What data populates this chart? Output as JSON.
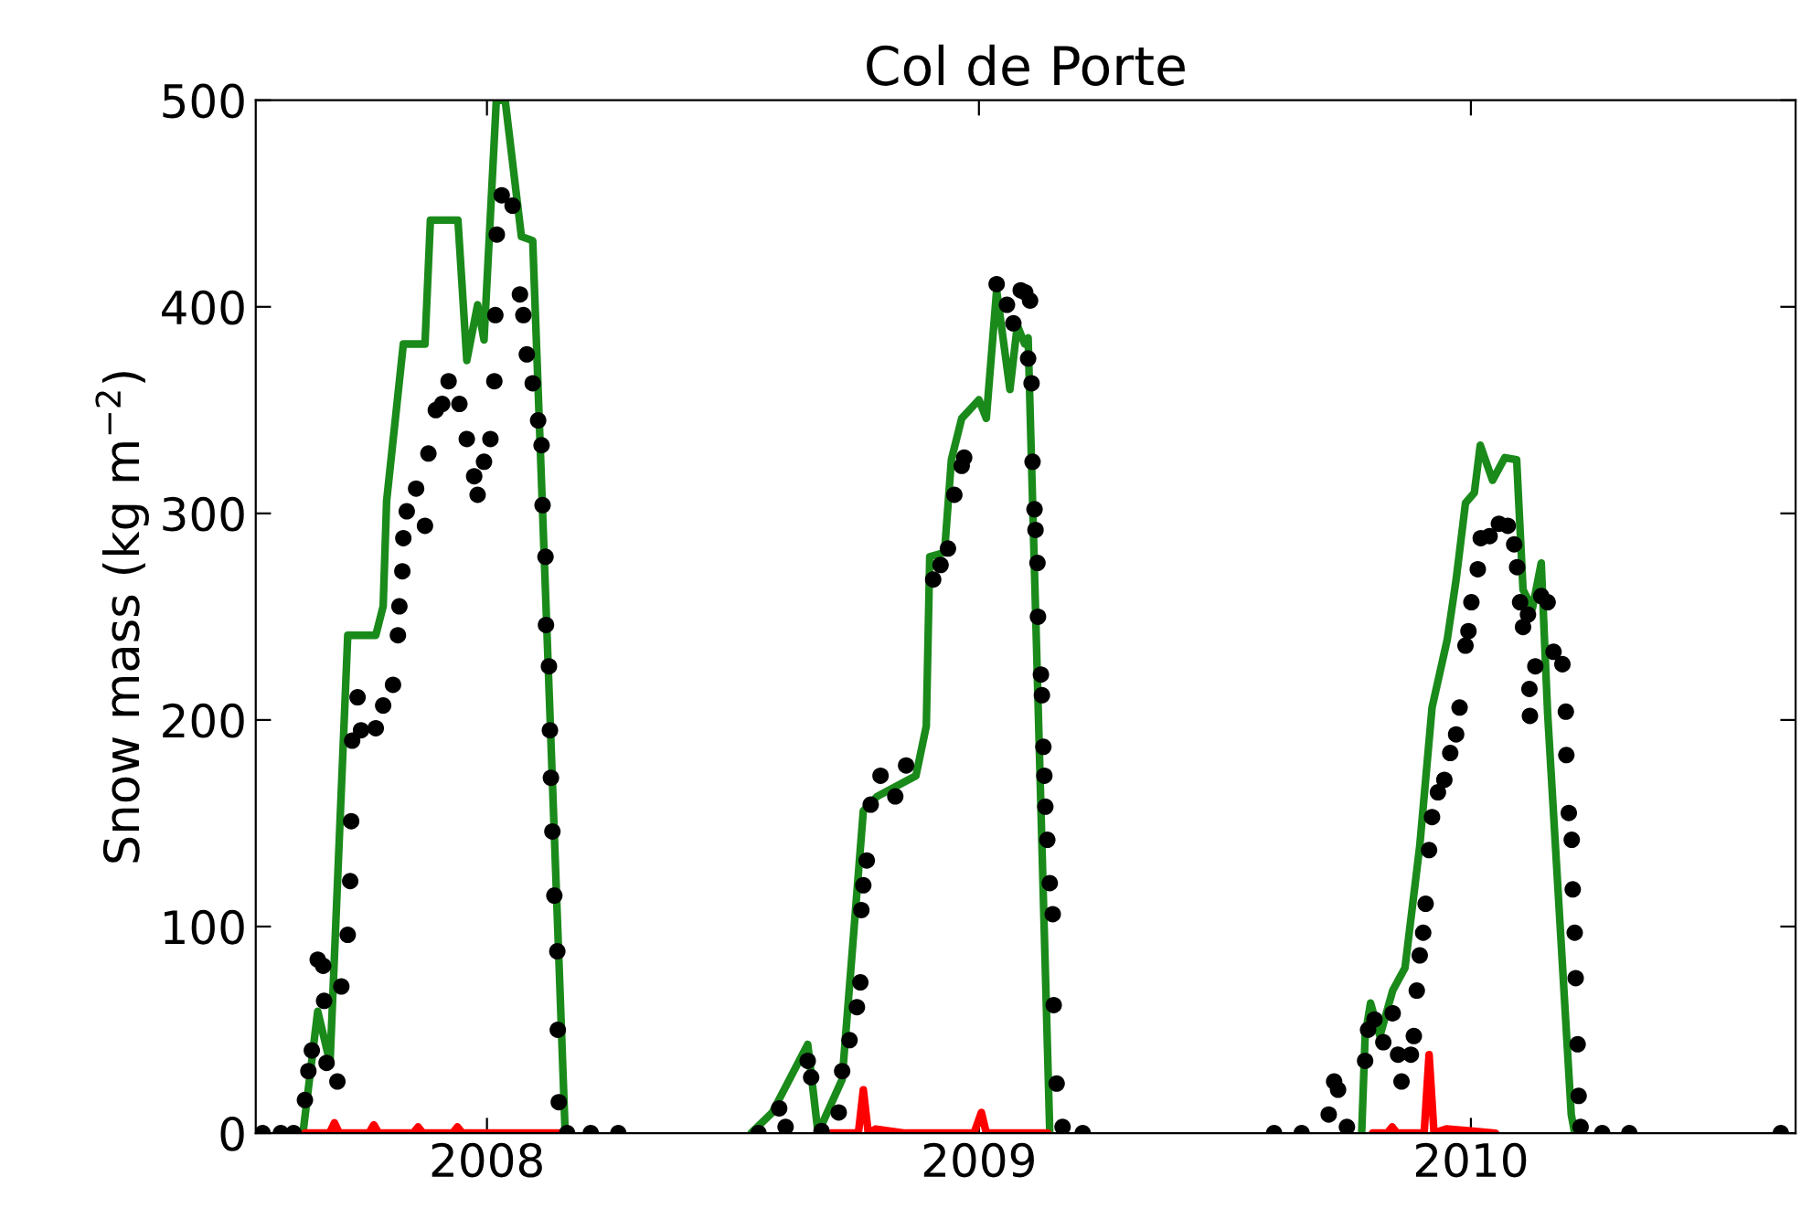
{
  "chart_data": {
    "type": "line",
    "title": "Col de Porte",
    "ylabel": "Snow mass (kg m$^{−2}$)",
    "xlim": [
      2007.53,
      2010.66
    ],
    "xticks": [
      2008,
      2009,
      2010
    ],
    "ylim": [
      0,
      500
    ],
    "yticks": [
      0,
      100,
      200,
      300,
      400,
      500
    ],
    "grid": false,
    "legend": false,
    "series": [
      {
        "color": "#1a8a1a",
        "x": [
          2007.626,
          2007.656,
          2007.681,
          2007.717,
          2007.774,
          2007.789,
          2007.796,
          2007.83,
          2007.874,
          2007.885,
          2007.941,
          2007.959,
          2007.981,
          2007.994,
          2008.019,
          2008.037,
          2008.07,
          2008.093,
          2008.159,
          null,
          2008.537,
          2008.58,
          2008.652,
          2008.673,
          2008.722,
          2008.765,
          2008.793,
          2008.872,
          2008.893,
          2008.9,
          2008.93,
          2008.944,
          2008.965,
          2009.0,
          2009.015,
          2009.036,
          2009.063,
          2009.078,
          2009.093,
          2009.1,
          2009.144,
          null,
          2009.778,
          2009.785,
          2009.796,
          2009.815,
          2009.841,
          2009.866,
          2009.896,
          2009.921,
          2009.952,
          2009.97,
          2009.989,
          2010.007,
          2010.019,
          2010.044,
          2010.069,
          2010.093,
          2010.106,
          2010.125,
          2010.143,
          2010.156,
          2010.204,
          2010.211
        ],
        "values": [
          0,
          59,
          34,
          241,
          241,
          255,
          306,
          382,
          382,
          442,
          442,
          374,
          401,
          384,
          500,
          500,
          434,
          432,
          0,
          null,
          0,
          10,
          43,
          0,
          26,
          156,
          163,
          173,
          197,
          279,
          281,
          326,
          346,
          355,
          346,
          408,
          360,
          391,
          382,
          385,
          0,
          null,
          0,
          47,
          63,
          47,
          69,
          80,
          139,
          206,
          239,
          268,
          305,
          310,
          333,
          316,
          327,
          326,
          263,
          254,
          276,
          203,
          9,
          0
        ]
      },
      {
        "color": "#ff0000",
        "x": [
          2007.63,
          2007.68,
          2007.69,
          2007.7,
          2007.76,
          2007.77,
          2007.78,
          2007.85,
          2007.86,
          2007.87,
          2007.93,
          2007.94,
          2007.95,
          2008.16,
          null,
          2008.7,
          2008.755,
          2008.765,
          2008.775,
          2008.79,
          2008.85,
          2008.99,
          2009.005,
          2009.015,
          2009.14,
          null,
          2009.8,
          2009.83,
          2009.84,
          2009.85,
          2009.905,
          2009.915,
          2009.925,
          2009.95,
          2010.0,
          2010.05
        ],
        "values": [
          0,
          0,
          5,
          0,
          0,
          4,
          0,
          0,
          3,
          0,
          0,
          3,
          0,
          0,
          null,
          0,
          0,
          21,
          0,
          2,
          0,
          0,
          10,
          0,
          0,
          null,
          0,
          0,
          3,
          0,
          0,
          38,
          0,
          2,
          1,
          0
        ]
      },
      {
        "type": "scatter",
        "color": "#000000",
        "marker": "circle",
        "x": [
          2007.544,
          2007.581,
          2007.607,
          2007.63,
          2007.637,
          2007.644,
          2007.656,
          2007.667,
          2007.669,
          2007.674,
          2007.696,
          2007.704,
          2007.717,
          2007.722,
          2007.724,
          2007.726,
          2007.737,
          2007.744,
          2007.774,
          2007.789,
          2007.809,
          2007.819,
          2007.822,
          2007.828,
          2007.83,
          2007.837,
          2007.856,
          2007.874,
          2007.881,
          2007.896,
          2007.909,
          2007.922,
          2007.944,
          2007.959,
          2007.974,
          2007.981,
          2007.994,
          2008.007,
          2008.015,
          2008.017,
          2008.02,
          2008.03,
          2008.052,
          2008.067,
          2008.074,
          2008.081,
          2008.093,
          2008.104,
          2008.111,
          2008.113,
          2008.119,
          2008.12,
          2008.126,
          2008.128,
          2008.13,
          2008.133,
          2008.137,
          2008.143,
          2008.144,
          2008.146,
          2008.163,
          2008.211,
          2008.267,
          2008.552,
          2008.594,
          2008.607,
          2008.652,
          2008.659,
          2008.68,
          2008.715,
          2008.722,
          2008.737,
          2008.752,
          2008.759,
          2008.761,
          2008.765,
          2008.772,
          2008.78,
          2008.8,
          2008.83,
          2008.852,
          2008.907,
          2008.922,
          2008.937,
          2008.95,
          2008.965,
          2008.97,
          2009.036,
          2009.057,
          2009.07,
          2009.085,
          2009.094,
          2009.1,
          2009.104,
          2009.107,
          2009.109,
          2009.113,
          2009.115,
          2009.119,
          2009.12,
          2009.126,
          2009.128,
          2009.131,
          2009.133,
          2009.135,
          2009.139,
          2009.144,
          2009.15,
          2009.152,
          2009.158,
          2009.17,
          2009.211,
          2009.6,
          2009.656,
          2009.711,
          2009.722,
          2009.73,
          2009.748,
          2009.785,
          2009.791,
          2009.804,
          2009.822,
          2009.841,
          2009.852,
          2009.859,
          2009.878,
          2009.884,
          2009.89,
          2009.896,
          2009.903,
          2009.908,
          2009.915,
          2009.921,
          2009.933,
          2009.946,
          2009.958,
          2009.97,
          2009.977,
          2009.989,
          2009.995,
          2010.001,
          2010.014,
          2010.02,
          2010.038,
          2010.057,
          2010.075,
          2010.088,
          2010.094,
          2010.1,
          2010.106,
          2010.116,
          2010.119,
          2010.12,
          2010.131,
          2010.143,
          2010.156,
          2010.168,
          2010.186,
          2010.193,
          2010.194,
          2010.199,
          2010.205,
          2010.207,
          2010.211,
          2010.213,
          2010.217,
          2010.219,
          2010.223,
          2010.267,
          2010.322,
          2010.63
        ],
        "values": [
          0,
          0,
          0,
          16,
          30,
          40,
          84,
          81,
          64,
          34,
          25,
          71,
          96,
          122,
          151,
          190,
          211,
          195,
          196,
          207,
          217,
          241,
          255,
          272,
          288,
          301,
          312,
          294,
          329,
          350,
          353,
          364,
          353,
          336,
          318,
          309,
          325,
          336,
          364,
          396,
          435,
          454,
          449,
          406,
          396,
          377,
          363,
          345,
          333,
          304,
          279,
          246,
          226,
          195,
          172,
          146,
          115,
          88,
          50,
          15,
          0,
          0,
          0,
          0,
          12,
          3,
          35,
          27,
          1,
          10,
          30,
          45,
          61,
          73,
          108,
          120,
          132,
          159,
          173,
          163,
          178,
          268,
          275,
          283,
          309,
          323,
          327,
          411,
          401,
          392,
          408,
          407,
          375,
          403,
          363,
          325,
          302,
          292,
          276,
          250,
          222,
          212,
          187,
          173,
          158,
          142,
          121,
          106,
          62,
          24,
          3,
          0,
          0,
          0,
          9,
          25,
          21,
          3,
          35,
          50,
          55,
          44,
          58,
          38,
          25,
          38,
          47,
          69,
          86,
          97,
          111,
          137,
          153,
          165,
          171,
          184,
          193,
          206,
          236,
          243,
          257,
          273,
          288,
          289,
          295,
          294,
          285,
          274,
          257,
          245,
          251,
          215,
          202,
          226,
          260,
          257,
          233,
          227,
          204,
          183,
          155,
          142,
          118,
          97,
          75,
          43,
          18,
          3,
          0,
          0,
          0
        ]
      }
    ]
  }
}
